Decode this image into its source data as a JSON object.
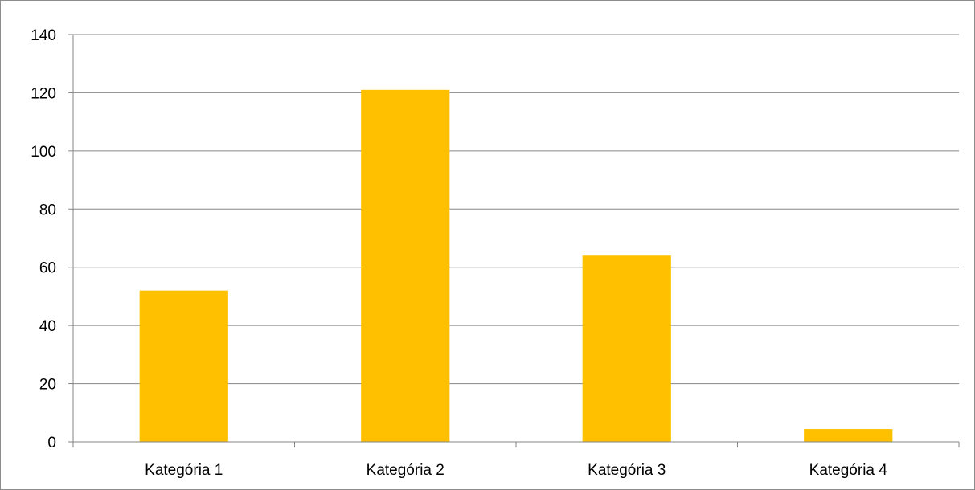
{
  "chart_data": {
    "type": "bar",
    "categories": [
      "Kategória 1",
      "Kategória 2",
      "Kategória 3",
      "Kategória 4"
    ],
    "series": [
      {
        "values": [
          52,
          121,
          64,
          4.4
        ]
      }
    ],
    "title": "",
    "xlabel": "",
    "ylabel": "",
    "ylim": [
      0,
      140
    ],
    "yticks": [
      0,
      20,
      40,
      60,
      80,
      100,
      120,
      140
    ],
    "grid": true,
    "legend": "none",
    "colors": {
      "bar": "#FFC000",
      "grid": "#868686",
      "axis": "#868686",
      "frame": "#8c8c8c"
    }
  }
}
